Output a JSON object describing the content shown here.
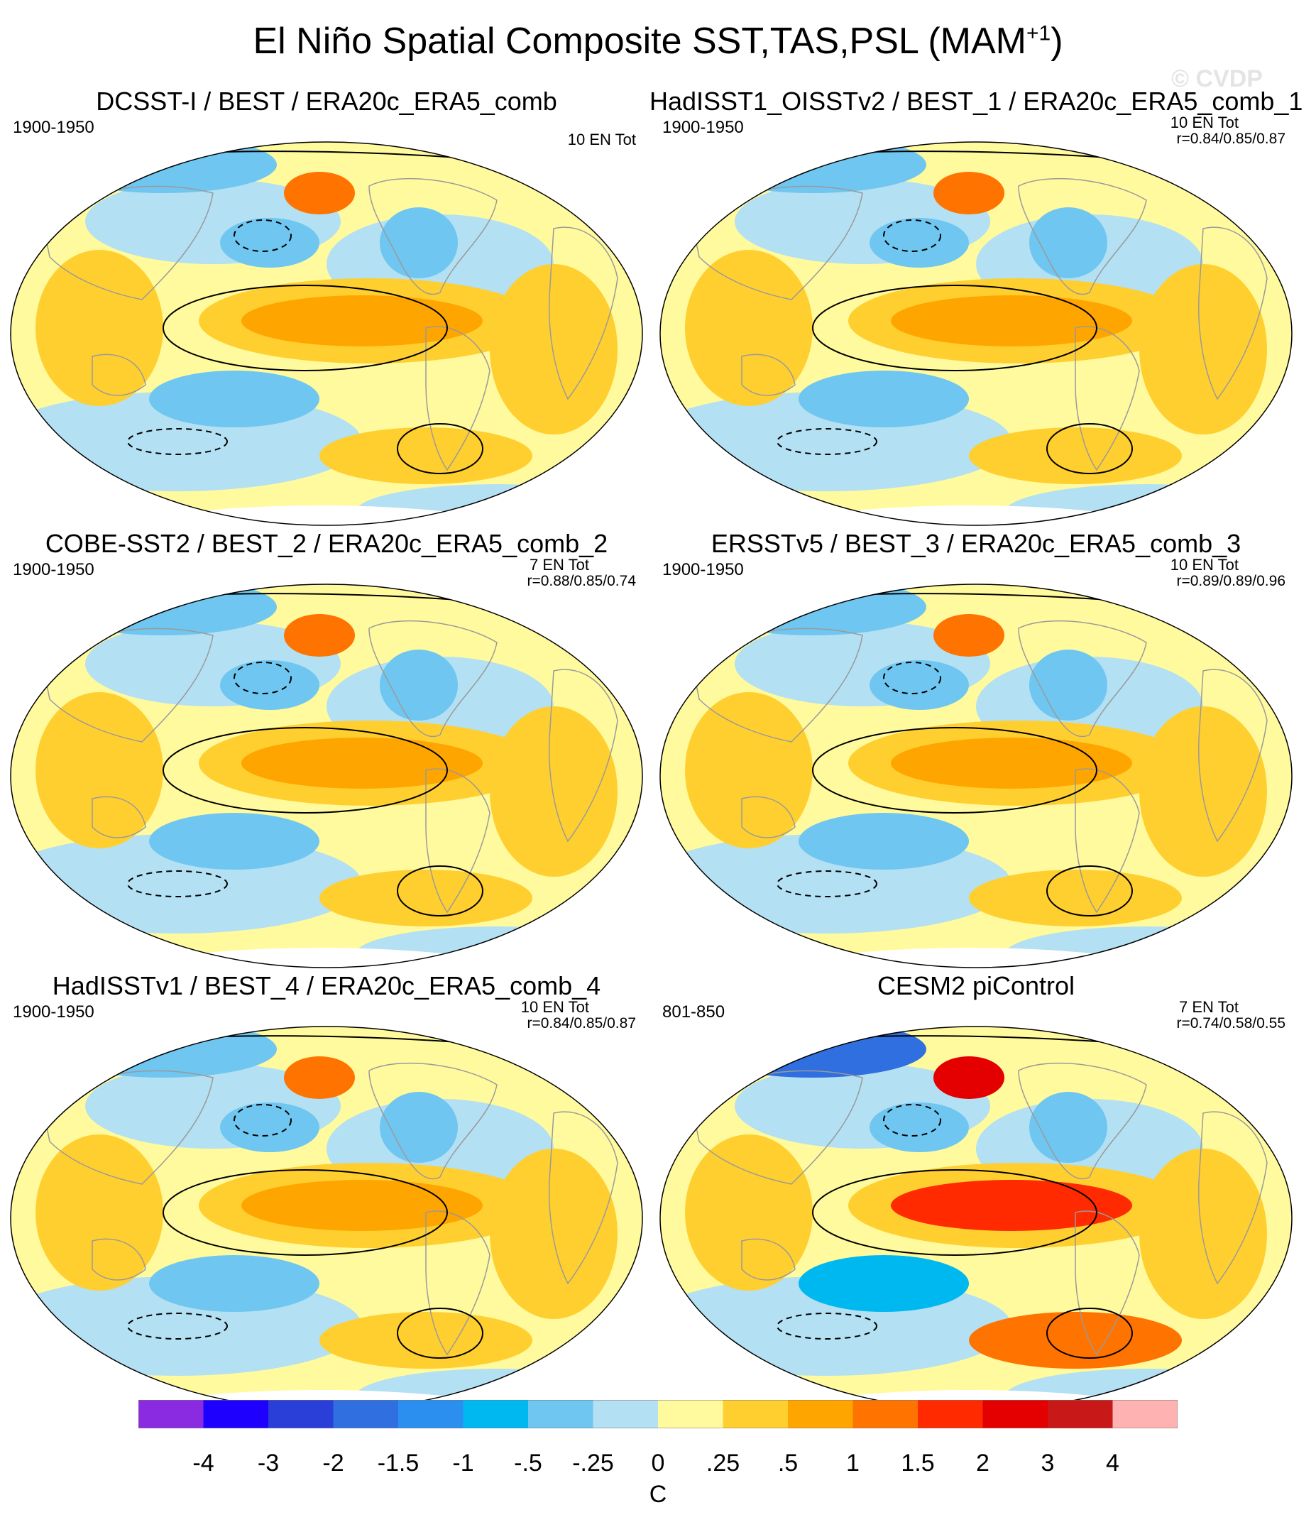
{
  "page": {
    "title": "El Niño Spatial Composite SST,TAS,PSL (MAM",
    "title_superscript": "+1",
    "title_close": ")",
    "watermark": "© CVDP"
  },
  "chart_data": {
    "type": "heatmap",
    "panels": [
      {
        "title": "DCSST-I / BEST / ERA20c_ERA5_comb",
        "period": "1900-1950",
        "count": "10 EN Tot",
        "correlation": "",
        "style": "obs"
      },
      {
        "title": "HadISST1_OISSTv2 / BEST_1 / ERA20c_ERA5_comb_1",
        "period": "1900-1950",
        "count": "10 EN Tot",
        "correlation": "r=0.84/0.85/0.87",
        "style": "obs"
      },
      {
        "title": "COBE-SST2 / BEST_2 / ERA20c_ERA5_comb_2",
        "period": "1900-1950",
        "count": "7 EN Tot",
        "correlation": "r=0.88/0.85/0.74",
        "style": "obs"
      },
      {
        "title": "ERSSTv5 / BEST_3 / ERA20c_ERA5_comb_3",
        "period": "1900-1950",
        "count": "10 EN Tot",
        "correlation": "r=0.89/0.89/0.96",
        "style": "obs"
      },
      {
        "title": "HadISSTv1 / BEST_4 / ERA20c_ERA5_comb_4",
        "period": "1900-1950",
        "count": "10 EN Tot",
        "correlation": "r=0.84/0.85/0.87",
        "style": "obs"
      },
      {
        "title": "CESM2 piControl",
        "period": "801-850",
        "count": "7 EN Tot",
        "correlation": "r=0.74/0.58/0.55",
        "style": "model"
      }
    ],
    "colorbar": {
      "colors": [
        "#8a2be2",
        "#1e00ff",
        "#2a3fd8",
        "#2f6fe0",
        "#2b8ff0",
        "#00b8f0",
        "#6fc6f0",
        "#b3e0f2",
        "#fffa9e",
        "#ffcf30",
        "#ffa500",
        "#ff7300",
        "#ff2a00",
        "#e40000",
        "#c81818",
        "#ffb2b2"
      ],
      "tick_labels": [
        "-4",
        "-3",
        "-2",
        "-1.5",
        "-1",
        "-.5",
        "-.25",
        "0",
        ".25",
        ".5",
        "1",
        "1.5",
        "2",
        "3",
        "4"
      ],
      "units": "C"
    }
  }
}
